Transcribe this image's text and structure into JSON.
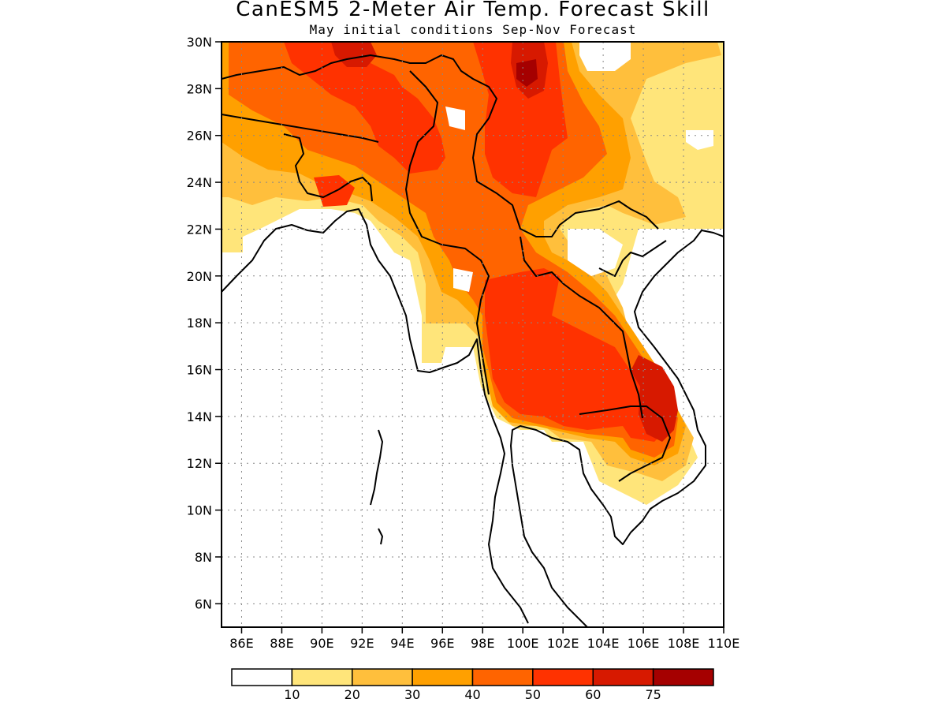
{
  "title": "CanESM5 2-Meter Air Temp. Forecast Skill",
  "subtitle": "May initial conditions  Sep-Nov Forecast",
  "map": {
    "lon_range": [
      85,
      110
    ],
    "lat_range": [
      5,
      30
    ],
    "lat_ticks": [
      "30N",
      "28N",
      "26N",
      "24N",
      "22N",
      "20N",
      "18N",
      "16N",
      "14N",
      "12N",
      "10N",
      "8N",
      "6N"
    ],
    "lon_ticks": [
      "86E",
      "88E",
      "90E",
      "92E",
      "94E",
      "96E",
      "98E",
      "100E",
      "102E",
      "104E",
      "106E",
      "108E",
      "110E"
    ],
    "gridlines": "dotted"
  },
  "colorbar": {
    "colors": [
      "#ffffff",
      "#ffe57a",
      "#ffbf3c",
      "#ffa000",
      "#ff6400",
      "#ff3200",
      "#d71900",
      "#a50000"
    ],
    "labels": [
      "10",
      "20",
      "30",
      "40",
      "50",
      "60",
      "75"
    ]
  }
}
